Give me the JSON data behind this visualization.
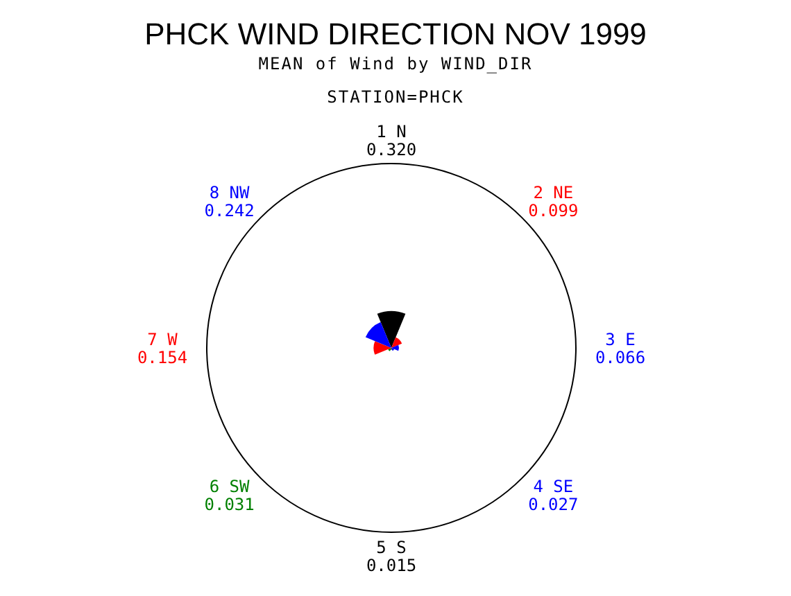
{
  "chart_data": {
    "type": "other",
    "title": "PHCK WIND DIRECTION NOV 1999",
    "subtitle": "MEAN of Wind by WIND_DIR",
    "annotations": [
      "STATION=PHCK"
    ],
    "categories": [
      "1 N",
      "2 NE",
      "3 E",
      "4 SE",
      "5 S",
      "6 SW",
      "7 W",
      "8 NW"
    ],
    "values": [
      0.32,
      0.099,
      0.066,
      0.027,
      0.015,
      0.031,
      0.154,
      0.242
    ],
    "colors": [
      "#000000",
      "#ff0000",
      "#0000ff",
      "#0000ff",
      "#000000",
      "#008000",
      "#ff0000",
      "#0000ff"
    ],
    "value_labels": [
      "0.320",
      "0.099",
      "0.066",
      "0.027",
      "0.015",
      "0.031",
      "0.154",
      "0.242"
    ]
  }
}
